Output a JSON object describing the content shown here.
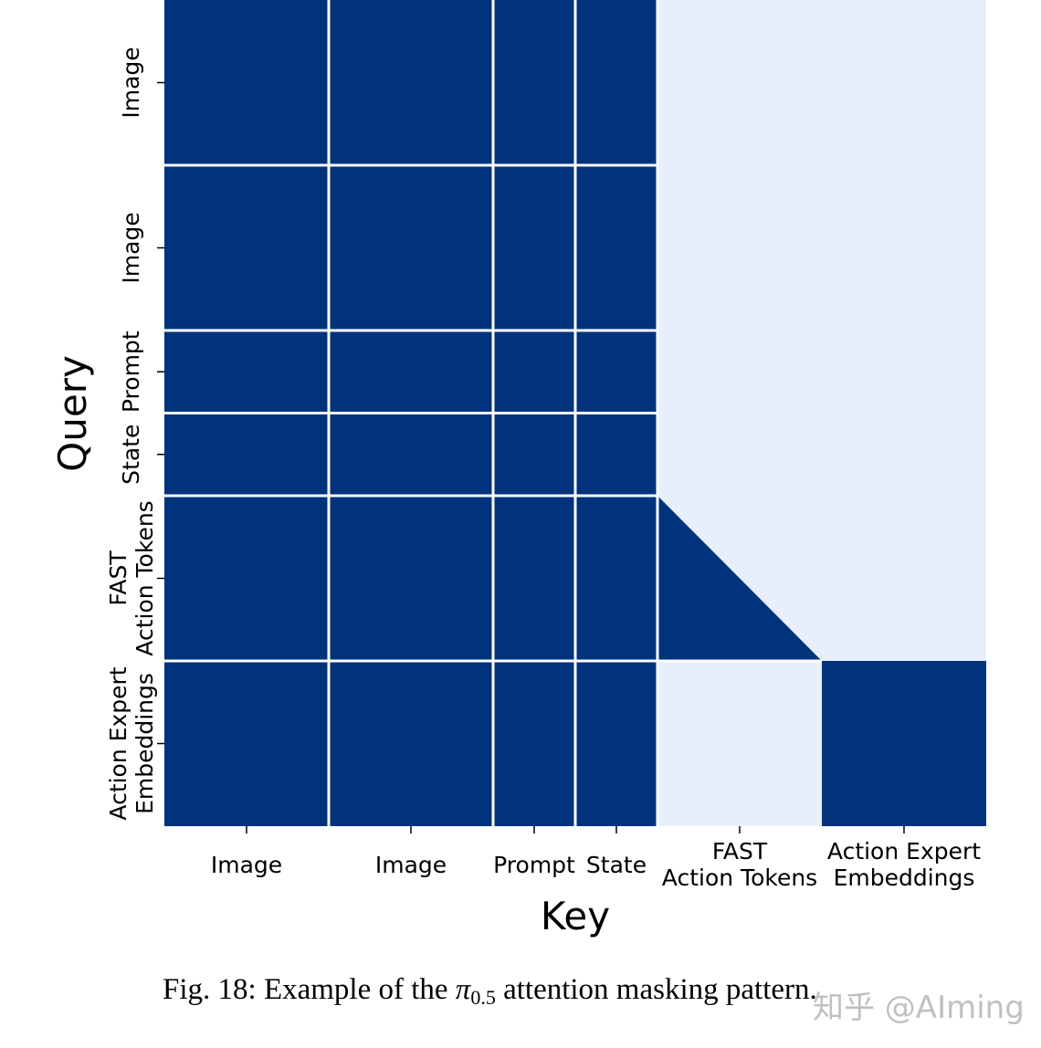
{
  "chart_data": {
    "type": "heatmap",
    "title": "",
    "xlabel": "Key",
    "ylabel": "Query",
    "colors": {
      "attend": "#00337c",
      "masked": "#e8effa",
      "grid": "#ffffff"
    },
    "blocks": [
      {
        "tick_label": "Image",
        "tokens": 256
      },
      {
        "tick_label": "Image",
        "tokens": 256
      },
      {
        "tick_label": "Prompt",
        "tokens": 128
      },
      {
        "tick_label": "State",
        "tokens": 128
      },
      {
        "tick_label": "FAST\nAction Tokens",
        "tokens": 256
      },
      {
        "tick_label": "Action Expert\nEmbeddings",
        "tokens": 256
      }
    ],
    "mask": [
      {
        "query_block": "Image",
        "attends_to": [
          "Image",
          "Image",
          "Prompt",
          "State"
        ]
      },
      {
        "query_block": "Image",
        "attends_to": [
          "Image",
          "Image",
          "Prompt",
          "State"
        ]
      },
      {
        "query_block": "Prompt",
        "attends_to": [
          "Image",
          "Image",
          "Prompt",
          "State"
        ]
      },
      {
        "query_block": "State",
        "attends_to": [
          "Image",
          "Image",
          "Prompt",
          "State"
        ]
      },
      {
        "query_block": "FAST Action Tokens",
        "attends_to": [
          "Image",
          "Image",
          "Prompt",
          "State",
          "FAST Action Tokens (causal)"
        ]
      },
      {
        "query_block": "Action Expert Embeddings",
        "attends_to": [
          "Image",
          "Image",
          "Prompt",
          "State",
          "Action Expert Embeddings"
        ]
      }
    ],
    "legend": "none",
    "grid": true
  },
  "caption": {
    "prefix": "Fig. 18: Example of the ",
    "symbol": "π",
    "subscript": "0.5",
    "suffix": " attention masking pattern."
  },
  "watermark": "知乎 @AIming"
}
